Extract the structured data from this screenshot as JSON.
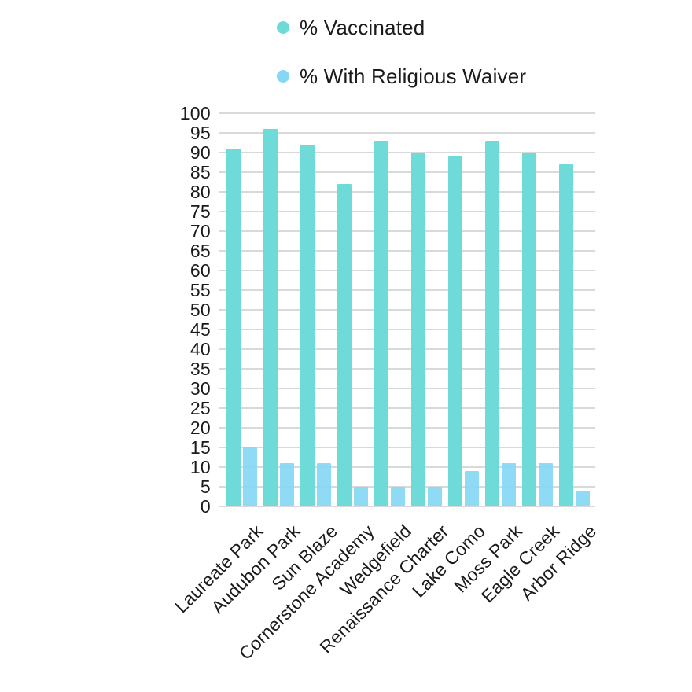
{
  "legend": {
    "items": [
      {
        "label": "% Vaccinated",
        "color": "#6EDBD8"
      },
      {
        "label": "% With Religious Waiver",
        "color": "#85D7F3"
      }
    ]
  },
  "chart_data": {
    "type": "bar",
    "title": "",
    "xlabel": "",
    "ylabel": "",
    "categories": [
      "Laureate Park",
      "Audubon Park",
      "Sun Blaze",
      "Cornerstone Academy",
      "Wedgefield",
      "Renaissance Charter",
      "Lake Como",
      "Moss Park",
      "Eagle Creek",
      "Arbor Ridge"
    ],
    "series": [
      {
        "name": "% Vaccinated",
        "color": "#6EDBD8",
        "values": [
          91,
          96,
          92,
          82,
          93,
          90,
          89,
          93,
          90,
          87
        ]
      },
      {
        "name": "% With Religious Waiver",
        "color": "#85D7F3",
        "values": [
          15,
          11,
          11,
          5,
          5,
          5,
          9,
          11,
          11,
          4
        ]
      }
    ],
    "ylim": [
      0,
      100
    ],
    "ytick_step": 5,
    "yticks": [
      0,
      5,
      10,
      15,
      20,
      25,
      30,
      35,
      40,
      45,
      50,
      55,
      60,
      65,
      70,
      75,
      80,
      85,
      90,
      95,
      100
    ],
    "grid": true,
    "gridline_color": "#D9D9D9",
    "background_color": "#FFFFFF",
    "text_color": "#1A1A1A",
    "legend_position": "top"
  }
}
